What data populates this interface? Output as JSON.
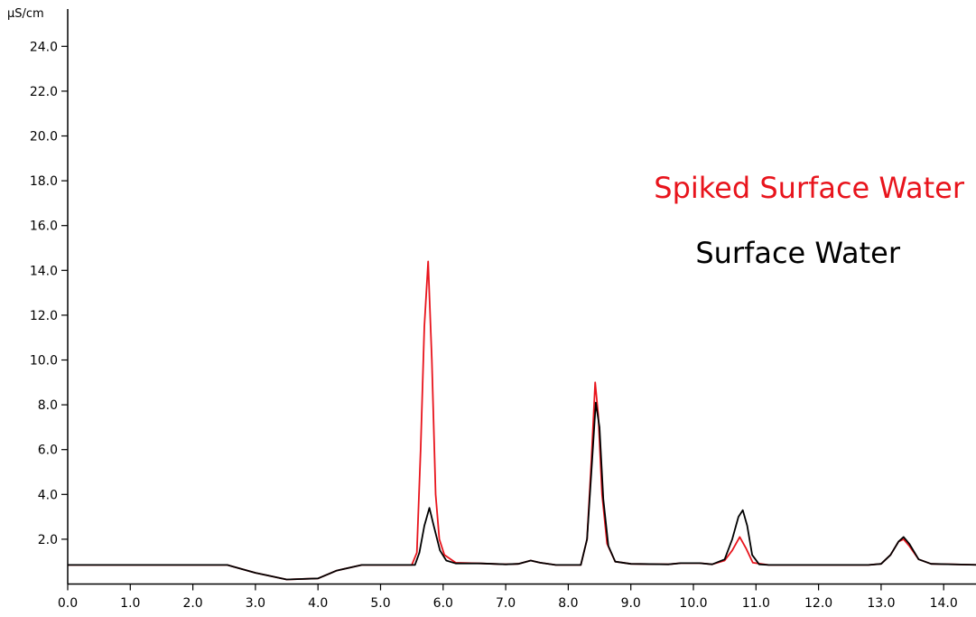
{
  "chart_data": {
    "type": "line",
    "title": "",
    "xlabel": "",
    "ylabel": "µS/cm",
    "xlim": [
      0,
      14.6
    ],
    "ylim": [
      0,
      24.8
    ],
    "x_ticks": [
      "0.0",
      "1.0",
      "2.0",
      "3.0",
      "4.0",
      "5.0",
      "6.0",
      "7.0",
      "8.0",
      "9.0",
      "10.0",
      "11.0",
      "12.0",
      "13.0",
      "14.0"
    ],
    "y_ticks": [
      "2.0",
      "4.0",
      "6.0",
      "8.0",
      "10.0",
      "12.0",
      "14.0",
      "16.0",
      "18.0",
      "20.0",
      "22.0",
      "24.0"
    ],
    "grid": false,
    "legend_position": "right",
    "colors": {
      "spiked": "#e8141c",
      "surface": "#000000"
    },
    "series": [
      {
        "name": "Spiked Surface Water",
        "color": "#e8141c",
        "points": [
          [
            0.0,
            0.85
          ],
          [
            2.55,
            0.85
          ],
          [
            3.0,
            0.5
          ],
          [
            3.5,
            0.2
          ],
          [
            4.0,
            0.25
          ],
          [
            4.3,
            0.6
          ],
          [
            4.7,
            0.85
          ],
          [
            5.5,
            0.85
          ],
          [
            5.58,
            1.4
          ],
          [
            5.64,
            6.0
          ],
          [
            5.7,
            11.5
          ],
          [
            5.76,
            14.4
          ],
          [
            5.82,
            10.0
          ],
          [
            5.88,
            4.0
          ],
          [
            5.94,
            2.0
          ],
          [
            6.02,
            1.3
          ],
          [
            6.2,
            0.95
          ],
          [
            6.6,
            0.92
          ],
          [
            7.0,
            0.88
          ],
          [
            7.2,
            0.9
          ],
          [
            7.4,
            1.05
          ],
          [
            7.55,
            0.95
          ],
          [
            7.8,
            0.85
          ],
          [
            8.2,
            0.85
          ],
          [
            8.3,
            2.0
          ],
          [
            8.37,
            5.5
          ],
          [
            8.43,
            9.0
          ],
          [
            8.48,
            7.5
          ],
          [
            8.54,
            4.0
          ],
          [
            8.62,
            1.8
          ],
          [
            8.75,
            1.0
          ],
          [
            9.0,
            0.9
          ],
          [
            9.6,
            0.88
          ],
          [
            9.8,
            0.93
          ],
          [
            10.1,
            0.93
          ],
          [
            10.3,
            0.88
          ],
          [
            10.5,
            1.05
          ],
          [
            10.62,
            1.5
          ],
          [
            10.74,
            2.1
          ],
          [
            10.84,
            1.6
          ],
          [
            10.95,
            0.95
          ],
          [
            11.2,
            0.85
          ],
          [
            12.8,
            0.85
          ],
          [
            13.0,
            0.9
          ],
          [
            13.15,
            1.3
          ],
          [
            13.28,
            1.9
          ],
          [
            13.36,
            2.0
          ],
          [
            13.45,
            1.7
          ],
          [
            13.6,
            1.1
          ],
          [
            13.8,
            0.9
          ],
          [
            14.6,
            0.85
          ]
        ]
      },
      {
        "name": "Surface Water",
        "color": "#000000",
        "points": [
          [
            0.0,
            0.85
          ],
          [
            2.55,
            0.85
          ],
          [
            3.0,
            0.5
          ],
          [
            3.5,
            0.2
          ],
          [
            4.0,
            0.25
          ],
          [
            4.3,
            0.6
          ],
          [
            4.7,
            0.85
          ],
          [
            5.55,
            0.85
          ],
          [
            5.62,
            1.4
          ],
          [
            5.7,
            2.6
          ],
          [
            5.78,
            3.4
          ],
          [
            5.85,
            2.6
          ],
          [
            5.95,
            1.5
          ],
          [
            6.05,
            1.05
          ],
          [
            6.2,
            0.92
          ],
          [
            6.6,
            0.92
          ],
          [
            7.0,
            0.88
          ],
          [
            7.2,
            0.9
          ],
          [
            7.4,
            1.05
          ],
          [
            7.55,
            0.95
          ],
          [
            7.8,
            0.85
          ],
          [
            8.2,
            0.85
          ],
          [
            8.3,
            2.0
          ],
          [
            8.37,
            5.0
          ],
          [
            8.44,
            8.1
          ],
          [
            8.5,
            7.0
          ],
          [
            8.56,
            3.8
          ],
          [
            8.64,
            1.7
          ],
          [
            8.75,
            1.0
          ],
          [
            9.0,
            0.9
          ],
          [
            9.6,
            0.88
          ],
          [
            9.8,
            0.93
          ],
          [
            10.1,
            0.93
          ],
          [
            10.3,
            0.88
          ],
          [
            10.5,
            1.1
          ],
          [
            10.62,
            2.0
          ],
          [
            10.72,
            3.0
          ],
          [
            10.79,
            3.3
          ],
          [
            10.86,
            2.6
          ],
          [
            10.94,
            1.3
          ],
          [
            11.05,
            0.88
          ],
          [
            11.2,
            0.85
          ],
          [
            12.8,
            0.85
          ],
          [
            13.0,
            0.9
          ],
          [
            13.15,
            1.3
          ],
          [
            13.28,
            1.9
          ],
          [
            13.36,
            2.1
          ],
          [
            13.45,
            1.8
          ],
          [
            13.6,
            1.1
          ],
          [
            13.8,
            0.9
          ],
          [
            14.6,
            0.85
          ]
        ]
      }
    ]
  }
}
